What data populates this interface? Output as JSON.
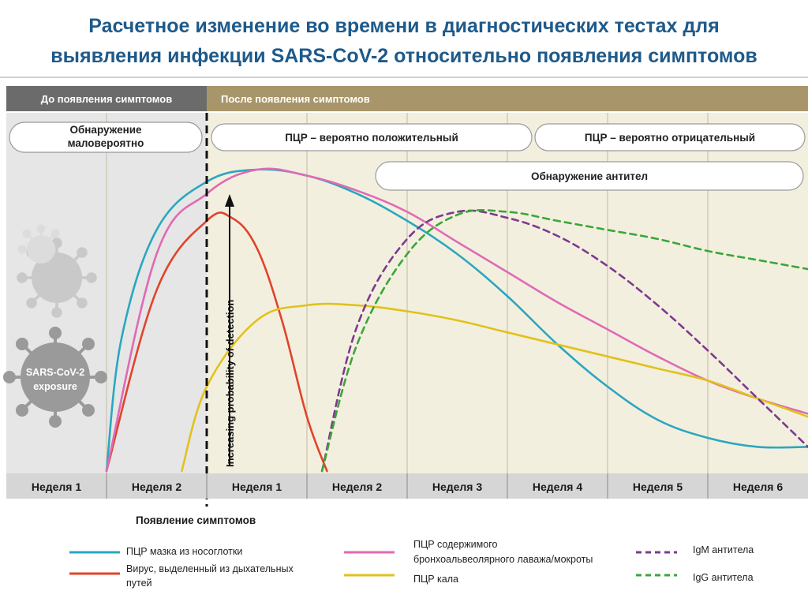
{
  "title_line1": "Расчетное изменение во времени в диагностических тестах для",
  "title_line2": "выявления инфекции SARS-CoV-2 относительно появления симптомов",
  "colors": {
    "title": "#1e5a8a",
    "before_header": "#6b6b6b",
    "after_header": "#a8966a",
    "before_bg": "#e6e6e6",
    "after_bg": "#f3efdf",
    "week_bg": "#d6d6d6"
  },
  "chart_data": {
    "type": "line",
    "phases": {
      "before": "До появления симптомов",
      "after": "После появления симптомов"
    },
    "status_pills": [
      {
        "label_line1": "Обнаружение",
        "label_line2": "маловероятно"
      },
      {
        "label_line1": "ПЦР – вероятно положительный",
        "label_line2": ""
      },
      {
        "label_line1": "ПЦР – вероятно отрицательный",
        "label_line2": ""
      },
      {
        "label_line1": "Обнаружение антител",
        "label_line2": ""
      }
    ],
    "x_categories": [
      "Неделя 1",
      "Неделя 2",
      "Неделя 1",
      "Неделя 2",
      "Неделя 3",
      "Неделя 4",
      "Неделя 5",
      "Неделя 6"
    ],
    "x_range": [
      -2,
      6
    ],
    "y_range": [
      0,
      1
    ],
    "onset_label": "Появление симптомов",
    "arrow_label": "Increasing probability of detection",
    "virus_label_line1": "SARS-CoV-2",
    "virus_label_line2": "exposure",
    "series": [
      {
        "name": "ПЦР мазка из носоглотки",
        "color": "#2aa7bf",
        "dash": false,
        "x": [
          -1,
          -0.85,
          -0.5,
          0,
          0.5,
          1,
          1.5,
          2,
          2.5,
          3,
          3.5,
          4,
          4.5,
          5,
          5.5,
          6
        ],
        "y": [
          0,
          0.44,
          0.8,
          0.96,
          1.0,
          0.98,
          0.92,
          0.83,
          0.72,
          0.58,
          0.42,
          0.28,
          0.17,
          0.11,
          0.08,
          0.08
        ]
      },
      {
        "name": "Вирус, выделенный из дыхательных путей",
        "color": "#e0442b",
        "dash": false,
        "x": [
          -1,
          -0.5,
          0,
          0.25,
          0.5,
          0.75,
          1.0,
          1.2
        ],
        "y": [
          0,
          0.6,
          0.83,
          0.84,
          0.74,
          0.5,
          0.18,
          0
        ]
      },
      {
        "name": "ПЦР содержимого бронхоальвеолярного лаважа/мокроты",
        "color": "#e06ab4",
        "dash": false,
        "x": [
          -1,
          -0.5,
          0,
          0.5,
          1,
          1.5,
          2,
          2.5,
          3,
          3.5,
          4,
          4.5,
          5,
          5.5,
          6
        ],
        "y": [
          0,
          0.72,
          0.92,
          1.0,
          0.98,
          0.93,
          0.86,
          0.76,
          0.66,
          0.56,
          0.47,
          0.38,
          0.3,
          0.24,
          0.19
        ]
      },
      {
        "name": "ПЦР кала",
        "color": "#e0c21c",
        "dash": false,
        "x": [
          -0.25,
          0,
          0.5,
          1,
          1.5,
          2,
          2.5,
          3,
          3.5,
          4,
          4.5,
          5,
          5.5,
          6
        ],
        "y": [
          0,
          0.28,
          0.5,
          0.55,
          0.55,
          0.53,
          0.5,
          0.46,
          0.42,
          0.38,
          0.34,
          0.3,
          0.24,
          0.18
        ]
      },
      {
        "name": "IgM антитела",
        "color": "#7d3a8e",
        "dash": true,
        "x": [
          1.15,
          1.5,
          2,
          2.5,
          3,
          3.5,
          4,
          4.5,
          5,
          5.5,
          6
        ],
        "y": [
          0,
          0.48,
          0.77,
          0.86,
          0.84,
          0.78,
          0.68,
          0.55,
          0.4,
          0.24,
          0.08
        ]
      },
      {
        "name": "IgG антитела",
        "color": "#3aa63a",
        "dash": true,
        "x": [
          1.15,
          1.5,
          2,
          2.5,
          3,
          3.5,
          4,
          4.5,
          5,
          5.5,
          6
        ],
        "y": [
          0,
          0.42,
          0.72,
          0.85,
          0.86,
          0.83,
          0.8,
          0.77,
          0.73,
          0.7,
          0.67
        ]
      }
    ]
  }
}
